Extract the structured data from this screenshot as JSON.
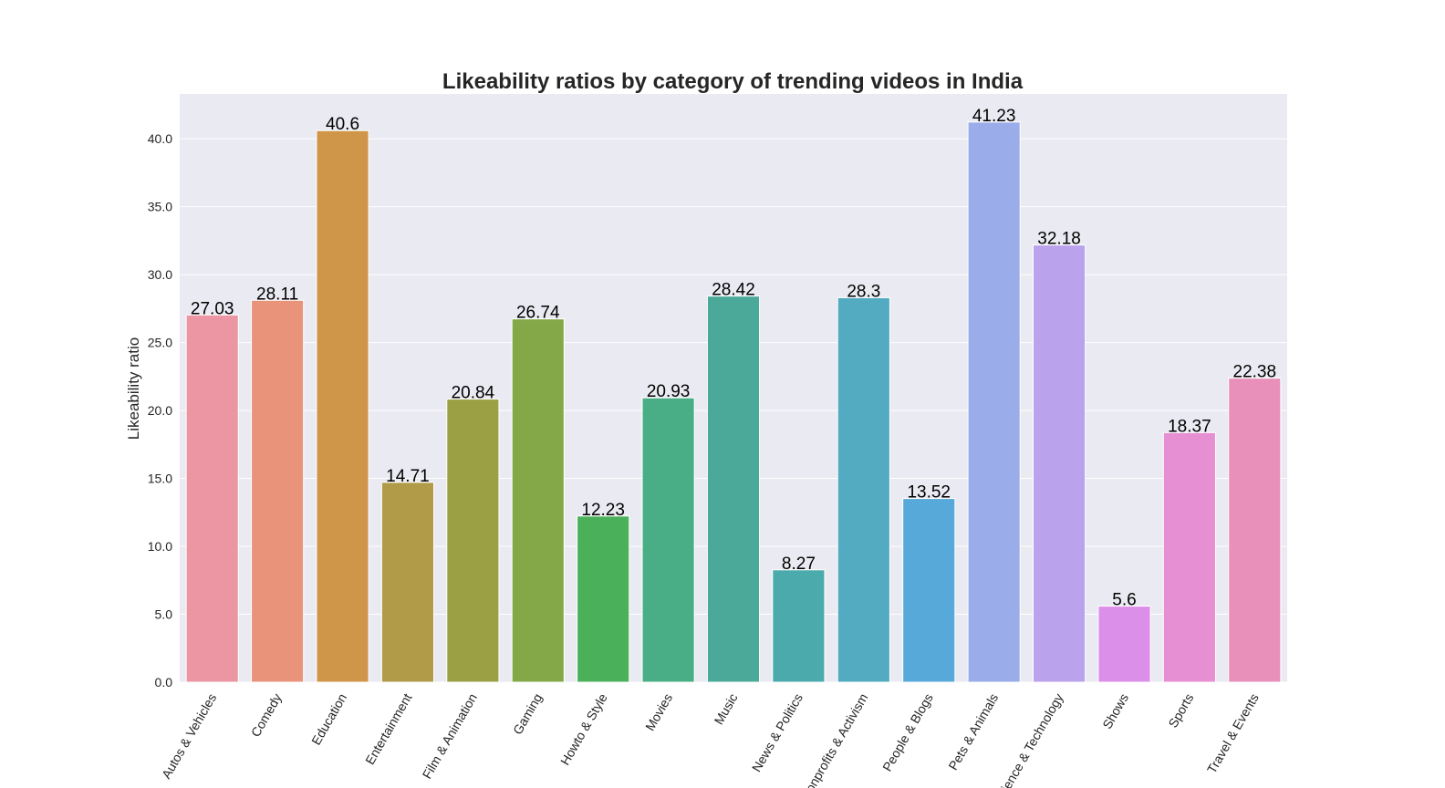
{
  "chart_data": {
    "type": "bar",
    "title": "Likeability ratios by category of trending videos in India",
    "xlabel": "",
    "ylabel": "Likeability ratio",
    "ylim": [
      0,
      43.3
    ],
    "yticks": [
      0.0,
      5.0,
      10.0,
      15.0,
      20.0,
      25.0,
      30.0,
      35.0,
      40.0
    ],
    "ytick_labels": [
      "0.0",
      "5.0",
      "10.0",
      "15.0",
      "20.0",
      "25.0",
      "30.0",
      "35.0",
      "40.0"
    ],
    "grid": true,
    "categories": [
      "Autos & Vehicles",
      "Comedy",
      "Education",
      "Entertainment",
      "Film & Animation",
      "Gaming",
      "Howto & Style",
      "Movies",
      "Music",
      "News & Politics",
      "Nonprofits & Activism",
      "People & Blogs",
      "Pets & Animals",
      "Science & Technology",
      "Shows",
      "Sports",
      "Travel & Events"
    ],
    "values": [
      27.03,
      28.11,
      40.6,
      14.71,
      20.84,
      26.74,
      12.23,
      20.93,
      28.42,
      8.27,
      28.3,
      13.52,
      41.23,
      32.18,
      5.6,
      18.37,
      22.38
    ],
    "value_labels": [
      "27.03",
      "28.11",
      "40.6",
      "14.71",
      "20.84",
      "26.74",
      "12.23",
      "20.93",
      "28.42",
      "8.27",
      "28.3",
      "13.52",
      "41.23",
      "32.18",
      "5.6",
      "18.37",
      "22.38"
    ],
    "colors": [
      "#eb96a2",
      "#e8937a",
      "#cf964a",
      "#b19b48",
      "#9ba044",
      "#84a848",
      "#4bb05a",
      "#49ae86",
      "#4aa999",
      "#4aaaac",
      "#52abc0",
      "#56a9d8",
      "#9aacea",
      "#bba2ec",
      "#dc8fe8",
      "#e68fd3",
      "#e88fba"
    ]
  }
}
